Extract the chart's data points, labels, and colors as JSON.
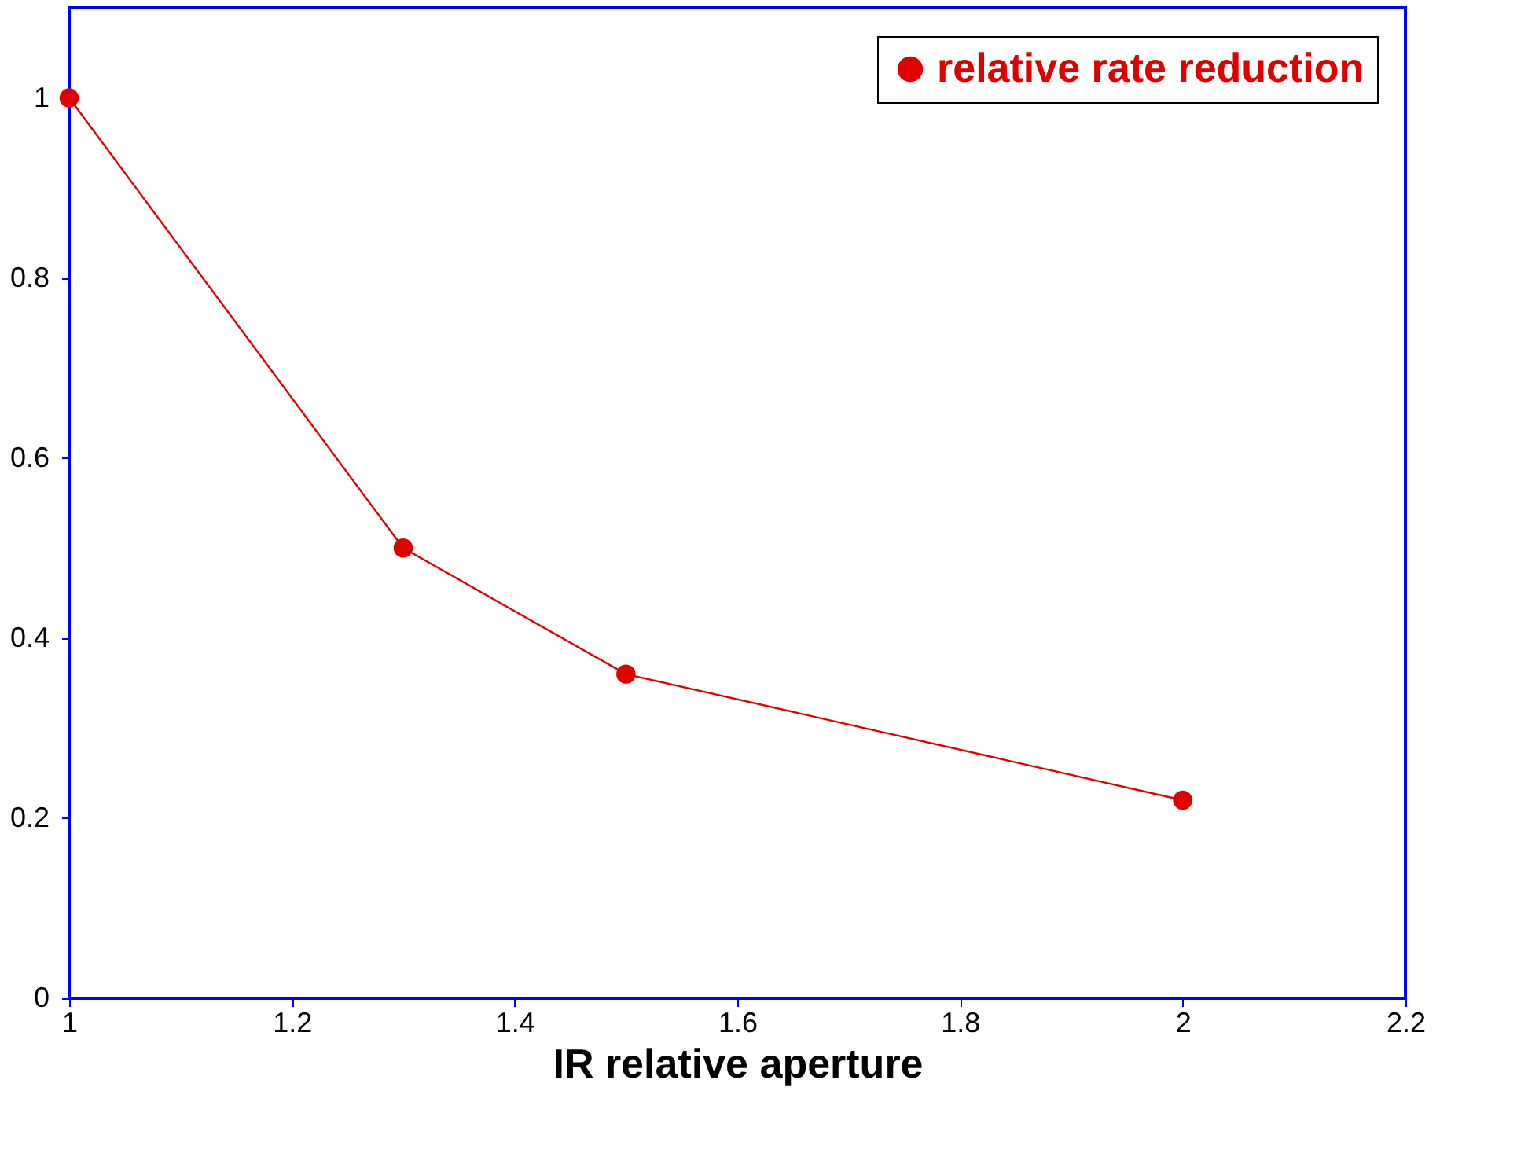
{
  "chart_data": {
    "type": "line",
    "xlabel": "IR relative aperture",
    "x": [
      1,
      1.3,
      1.5,
      2
    ],
    "series": [
      {
        "name": "relative rate reduction",
        "color": "#e00000",
        "values": [
          1,
          0.5,
          0.36,
          0.22
        ]
      }
    ],
    "xlim": [
      1,
      2.2
    ],
    "xticks": [
      1,
      1.2,
      1.4,
      1.6,
      1.8,
      2,
      2.2
    ],
    "ylim": [
      0,
      1.1
    ],
    "yticks": [
      0,
      0.2,
      0.4,
      0.6,
      0.8,
      1
    ],
    "grid": false,
    "legend": "top right",
    "marker": "circle",
    "line_style": "solid"
  }
}
